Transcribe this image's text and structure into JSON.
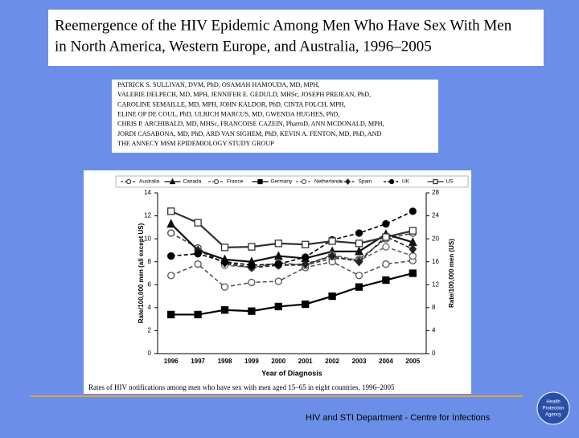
{
  "slide": {
    "title_lines": [
      "Reemergence of the HIV Epidemic Among Men Who Have Sex With Men",
      "in North America, Western Europe, and Australia, 1996–2005"
    ],
    "authors": [
      "PATRICK S. SULLIVAN, DVM, PhD, OSAMAH HAMOUDA, MD, MPH,",
      "VALERIE DELPECH, MD, MPH, JENNIFER E. GEDULD, MHSc, JOSEPH PREJEAN, PhD,",
      "CAROLINE SEMAILLE, MD, MPH, JOHN KALDOR, PhD, CINTA FOLCH, MPH,",
      "ELINE OP DE COUL, PhD, ULRICH MARCUS, MD, GWENDA HUGHES, PhD,",
      "CHRIS P. ARCHIBALD, MD, MHSc, FRANCOISE CAZEIN, PharmD, ANN MCDONALD, MPH,",
      "JORDI CASABONA, MD, PhD, ARD VAN SIGHEM, PhD, KEVIN A. FENTON, MD, PhD, AND",
      "THE ANNECY MSM EPIDEMIOLOGY STUDY GROUP"
    ],
    "caption": "Rates of HIV notifications among men who have sex with men aged 15–65 in eight countries, 1996–2005",
    "footer": "HIV and STI Department - Centre for Infections",
    "logo_lines": [
      "Health",
      "Protection",
      "Agency"
    ]
  },
  "chart_data": {
    "type": "line",
    "x_label": "Year of Diagnosis",
    "y_label": "Rate/100,000 men (all except US)",
    "y2_label": "Rate/100,000 men (US)",
    "categories": [
      "1996",
      "1997",
      "1998",
      "1999",
      "2000",
      "2001",
      "2002",
      "2003",
      "2004",
      "2005"
    ],
    "ylim": [
      0,
      14
    ],
    "yticks": [
      0,
      2,
      4,
      6,
      8,
      10,
      12,
      14
    ],
    "y2lim": [
      0,
      28
    ],
    "y2ticks": [
      0,
      4,
      8,
      12,
      16,
      20,
      24,
      28
    ],
    "grid": false,
    "series": [
      {
        "name": "Australia",
        "color": "#444444",
        "marker": "circle-open",
        "dash": true,
        "values": [
          10.5,
          9.2,
          7.8,
          7.5,
          7.7,
          7.7,
          8.3,
          8.2,
          10.0,
          10.5
        ]
      },
      {
        "name": "Canada",
        "color": "#111111",
        "marker": "triangle",
        "dash": false,
        "values": [
          11.3,
          9.0,
          8.2,
          8.0,
          8.5,
          8.3,
          8.9,
          8.9,
          10.4,
          9.7
        ]
      },
      {
        "name": "France",
        "color": "#555555",
        "marker": "circle-open",
        "dash": true,
        "values": [
          6.8,
          7.8,
          5.8,
          6.2,
          6.3,
          7.5,
          8.0,
          6.8,
          7.8,
          8.1
        ]
      },
      {
        "name": "Germany",
        "color": "#000000",
        "marker": "square",
        "dash": false,
        "values": [
          3.4,
          3.4,
          3.8,
          3.7,
          4.1,
          4.3,
          5.0,
          5.8,
          6.4,
          7.0
        ]
      },
      {
        "name": "Netherlands",
        "color": "#666666",
        "marker": "circle-open",
        "dash": true,
        "values": [
          null,
          null,
          7.7,
          7.5,
          7.9,
          7.7,
          8.6,
          8.1,
          9.3,
          8.5
        ]
      },
      {
        "name": "Spain",
        "color": "#222222",
        "marker": "diamond",
        "dash": true,
        "values": [
          null,
          9.0,
          7.9,
          7.5,
          7.7,
          7.8,
          8.5,
          8.0,
          10.2,
          9.1
        ]
      },
      {
        "name": "UK",
        "color": "#000000",
        "marker": "circle",
        "dash": true,
        "values": [
          8.5,
          8.7,
          8.0,
          7.7,
          7.8,
          8.4,
          9.9,
          10.5,
          11.3,
          12.4
        ]
      },
      {
        "name": "US",
        "color": "#333333",
        "marker": "square-open",
        "dash": false,
        "axis": "y2",
        "values": [
          24.8,
          22.8,
          18.5,
          18.6,
          19.2,
          19.0,
          19.6,
          19.2,
          20.3,
          21.4
        ]
      }
    ]
  }
}
